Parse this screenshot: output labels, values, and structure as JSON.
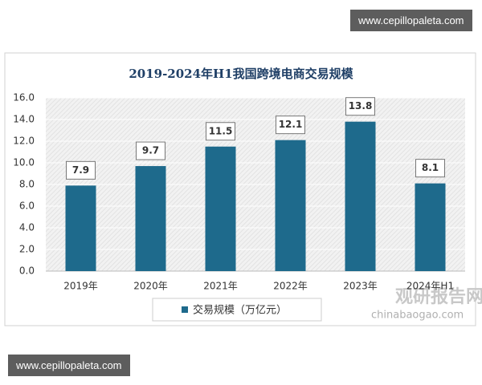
{
  "chart_data": {
    "type": "bar",
    "title": "2019-2024年H1我国跨境电商交易规模",
    "categories": [
      "2019年",
      "2020年",
      "2021年",
      "2022年",
      "2023年",
      "2024年H1"
    ],
    "series": [
      {
        "name": "交易规模（万亿元）",
        "color": "#1e6a8c",
        "values": [
          7.9,
          9.7,
          11.5,
          12.1,
          13.8,
          8.1
        ]
      }
    ],
    "ylim": [
      0,
      16
    ],
    "yticks": [
      {
        "value": 0,
        "label": "0.0"
      },
      {
        "value": 2,
        "label": "2.0"
      },
      {
        "value": 4,
        "label": "4.0"
      },
      {
        "value": 6,
        "label": "6.0"
      },
      {
        "value": 8,
        "label": "8.0"
      },
      {
        "value": 10,
        "label": "10.0"
      },
      {
        "value": 12,
        "label": "12.0"
      },
      {
        "value": 14,
        "label": "14.0"
      },
      {
        "value": 16,
        "label": "16.0"
      }
    ],
    "grid": true,
    "legend": "bottom"
  },
  "watermarks": [
    "www.cepillopaleta.com",
    "www.cepillopaleta.com"
  ],
  "logo": {
    "name": "观研报告网",
    "site": "chinabaogao.com"
  }
}
